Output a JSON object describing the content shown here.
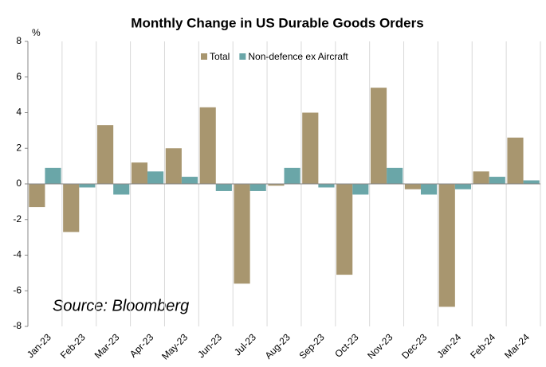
{
  "chart_data": {
    "type": "bar",
    "title": "Monthly Change in US Durable Goods Orders",
    "y_label": "%",
    "annotation": "Source: Bloomberg",
    "categories": [
      "Jan-23",
      "Feb-23",
      "Mar-23",
      "Apr-23",
      "May-23",
      "Jun-23",
      "Jul-23",
      "Aug-23",
      "Sep-23",
      "Oct-23",
      "Nov-23",
      "Dec-23",
      "Jan-24",
      "Feb-24",
      "Mar-24"
    ],
    "series": [
      {
        "name": "Total",
        "color": "#a8966f",
        "values": [
          -1.3,
          -2.7,
          3.3,
          1.2,
          2.0,
          4.3,
          -5.6,
          -0.1,
          4.0,
          -5.1,
          5.4,
          -0.3,
          -6.9,
          0.7,
          2.6
        ]
      },
      {
        "name": "Non-defence ex Aircraft",
        "color": "#6aa6a8",
        "values": [
          0.9,
          -0.2,
          -0.6,
          0.7,
          0.4,
          -0.4,
          -0.4,
          0.9,
          -0.2,
          -0.6,
          0.9,
          -0.6,
          -0.3,
          0.4,
          0.2
        ]
      }
    ],
    "ylim": [
      -8,
      8
    ],
    "yticks": [
      -8,
      -6,
      -4,
      -2,
      0,
      2,
      4,
      6,
      8
    ],
    "legend": "top"
  }
}
